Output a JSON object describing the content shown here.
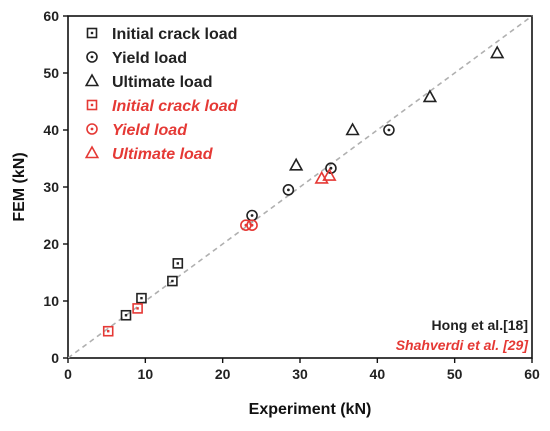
{
  "chart_data": {
    "type": "scatter",
    "xlabel": "Experiment (kN)",
    "ylabel": "FEM (kN)",
    "xlim": [
      0,
      60
    ],
    "ylim": [
      0,
      60
    ],
    "x_ticks": [
      0,
      10,
      20,
      30,
      40,
      50,
      60
    ],
    "y_ticks": [
      0,
      10,
      20,
      30,
      40,
      50,
      60
    ],
    "grid": false,
    "reference_line": {
      "x": [
        0,
        60
      ],
      "y": [
        0,
        60
      ],
      "style": "dashed",
      "color": "#b0b0b0"
    },
    "legend_position": "top-left",
    "series": [
      {
        "name": "Initial crack load",
        "marker": "square",
        "color": "#222222",
        "italic": false,
        "points": [
          [
            7.5,
            7.5
          ],
          [
            9.5,
            10.5
          ],
          [
            13.5,
            13.5
          ],
          [
            14.2,
            16.6
          ]
        ]
      },
      {
        "name": "Yield load",
        "marker": "circle",
        "color": "#222222",
        "italic": false,
        "points": [
          [
            23.8,
            25.0
          ],
          [
            28.5,
            29.5
          ],
          [
            34.0,
            33.3
          ],
          [
            41.5,
            40.0
          ]
        ]
      },
      {
        "name": "Ultimate load",
        "marker": "triangle",
        "color": "#222222",
        "italic": false,
        "points": [
          [
            29.5,
            33.8
          ],
          [
            36.8,
            40.0
          ],
          [
            46.8,
            45.8
          ],
          [
            55.5,
            53.5
          ]
        ]
      },
      {
        "name": "Initial crack load",
        "marker": "square",
        "color": "#e53935",
        "italic": true,
        "points": [
          [
            5.2,
            4.7
          ],
          [
            9.0,
            8.7
          ]
        ]
      },
      {
        "name": "Yield load",
        "marker": "circle",
        "color": "#e53935",
        "italic": true,
        "points": [
          [
            23.0,
            23.3
          ],
          [
            23.8,
            23.3
          ]
        ]
      },
      {
        "name": "Ultimate load",
        "marker": "triangle",
        "color": "#e53935",
        "italic": true,
        "points": [
          [
            32.8,
            31.5
          ],
          [
            33.8,
            32.0
          ]
        ]
      }
    ],
    "annotations": [
      {
        "text": "Hong et al.[18]",
        "color": "#222222",
        "italic": false
      },
      {
        "text": "Shahverdi et al. [29]",
        "color": "#e53935",
        "italic": true
      }
    ]
  }
}
